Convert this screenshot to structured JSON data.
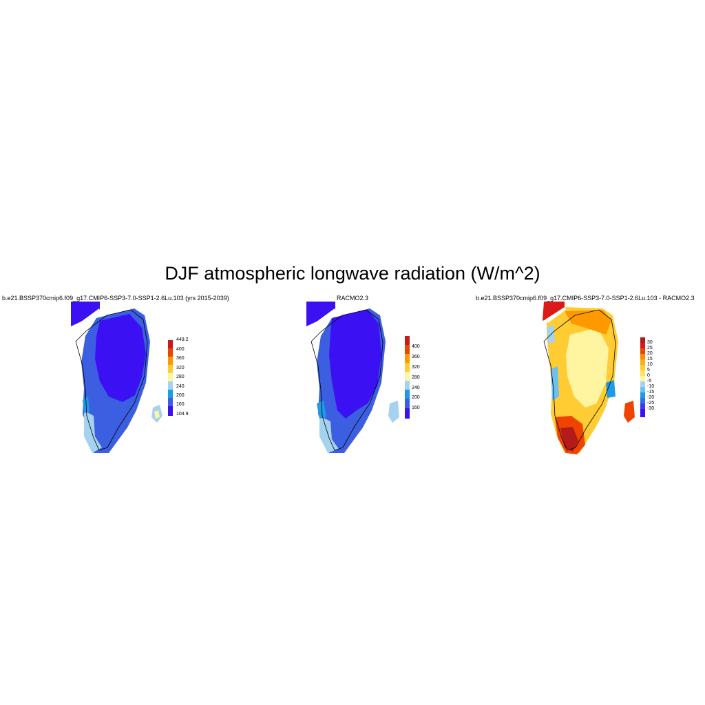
{
  "title": "DJF atmospheric longwave radiation (W/m^2)",
  "panels": [
    {
      "title": "b.e21.BSSP370cmip6.f09_g17.CMIP6-SSP3-7.0-SSP1-2.6Lu.103 (yrs 2015-2039)",
      "colorbar": {
        "colors": [
          "#3b10f2",
          "#3b5fe0",
          "#1e9ae8",
          "#a5d2ee",
          "#fff5a0",
          "#ffcc33",
          "#ff9900",
          "#ee4400",
          "#cc1a1a"
        ],
        "labels": [
          "449.2",
          "400",
          "360",
          "320",
          "280",
          "240",
          "200",
          "160",
          "104.9"
        ]
      }
    },
    {
      "title": "RACMO2.3",
      "colorbar": {
        "colors": [
          "#3b10f2",
          "#3b5fe0",
          "#1e9ae8",
          "#a5d2ee",
          "#fff5a0",
          "#ffcc33",
          "#ff9900",
          "#ee4400",
          "#cc1a1a"
        ],
        "labels": [
          "400",
          "360",
          "320",
          "280",
          "240",
          "200",
          "160"
        ]
      }
    },
    {
      "title": "b.e21.BSSP370cmip6.f09_g17.CMIP6-SSP3-7.0-SSP1-2.6Lu.103 - RACMO2.3",
      "colorbar": {
        "colors": [
          "#3b10f2",
          "#3b3be8",
          "#2e6ee6",
          "#1e9ae8",
          "#6ec0f0",
          "#a5d2ee",
          "#fff5a0",
          "#ffe066",
          "#ffcc33",
          "#ffaa22",
          "#ff8800",
          "#ee4400",
          "#dd1a1a",
          "#b31a1a"
        ],
        "labels": [
          "30",
          "25",
          "20",
          "15",
          "10",
          "5",
          "0",
          "-5",
          "-10",
          "-15",
          "-20",
          "-25",
          "-30"
        ]
      }
    }
  ]
}
